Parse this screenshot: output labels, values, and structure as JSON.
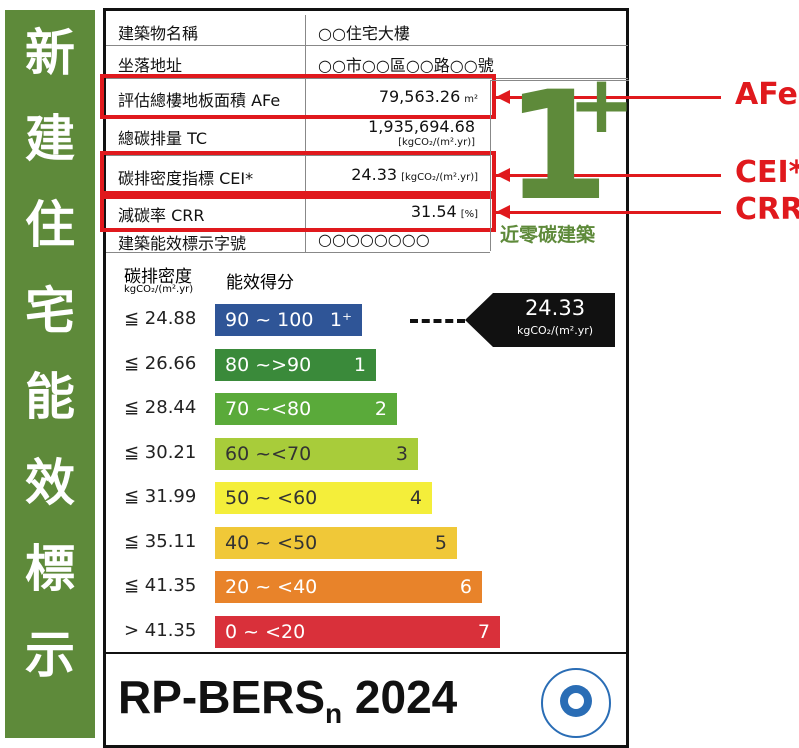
{
  "side_title": [
    "新",
    "建",
    "住",
    "宅",
    "能",
    "效",
    "標",
    "示"
  ],
  "table": {
    "rows": [
      {
        "label": "建築物名稱",
        "value": "○○住宅大樓"
      },
      {
        "label": "坐落地址",
        "value": "○○市○○區○○路○○號"
      },
      {
        "label": "評估總樓地板面積 AFe",
        "value": "79,563.26",
        "unit": "m²"
      },
      {
        "label": "總碳排量 TC",
        "value": "1,935,694.68",
        "unit": "[kgCO₂/(m².yr)]"
      },
      {
        "label": "碳排密度指標 CEI*",
        "value": "24.33",
        "unit": "[kgCO₂/(m².yr)]"
      },
      {
        "label": "減碳率 CRR",
        "value": "31.54",
        "unit": "[%]"
      },
      {
        "label": "建築能效標示字號",
        "value": "○○○○○○○○"
      }
    ]
  },
  "logo": {
    "grade": "1",
    "plus": "+",
    "caption": "近零碳建築"
  },
  "callouts": [
    "AFe",
    "CEI*",
    "CRR"
  ],
  "scale": {
    "col1": "碳排密度",
    "col1_unit": "kgCO₂/(m².yr)",
    "col2": "能效得分",
    "rows": [
      {
        "threshold": "≦ 24.88",
        "range": "90 ~ 100",
        "grade": "1⁺"
      },
      {
        "threshold": "≦ 26.66",
        "range": "80 ~>90",
        "grade": "1"
      },
      {
        "threshold": "≦ 28.44",
        "range": "70 ~<80",
        "grade": "2"
      },
      {
        "threshold": "≦ 30.21",
        "range": "60 ~<70",
        "grade": "3"
      },
      {
        "threshold": "≦ 31.99",
        "range": "50 ~ <60",
        "grade": "4"
      },
      {
        "threshold": "≦ 35.11",
        "range": "40 ~ <50",
        "grade": "5"
      },
      {
        "threshold": "≦ 41.35",
        "range": "20 ~ <40",
        "grade": "6"
      },
      {
        "threshold": "> 41.35",
        "range": "0 ~ <20",
        "grade": "7"
      }
    ]
  },
  "pointer": {
    "value": "24.33",
    "unit": "kgCO₂/(m².yr)"
  },
  "footer": {
    "title": "RP-BERS",
    "subscript": "n",
    "year": "2024"
  }
}
